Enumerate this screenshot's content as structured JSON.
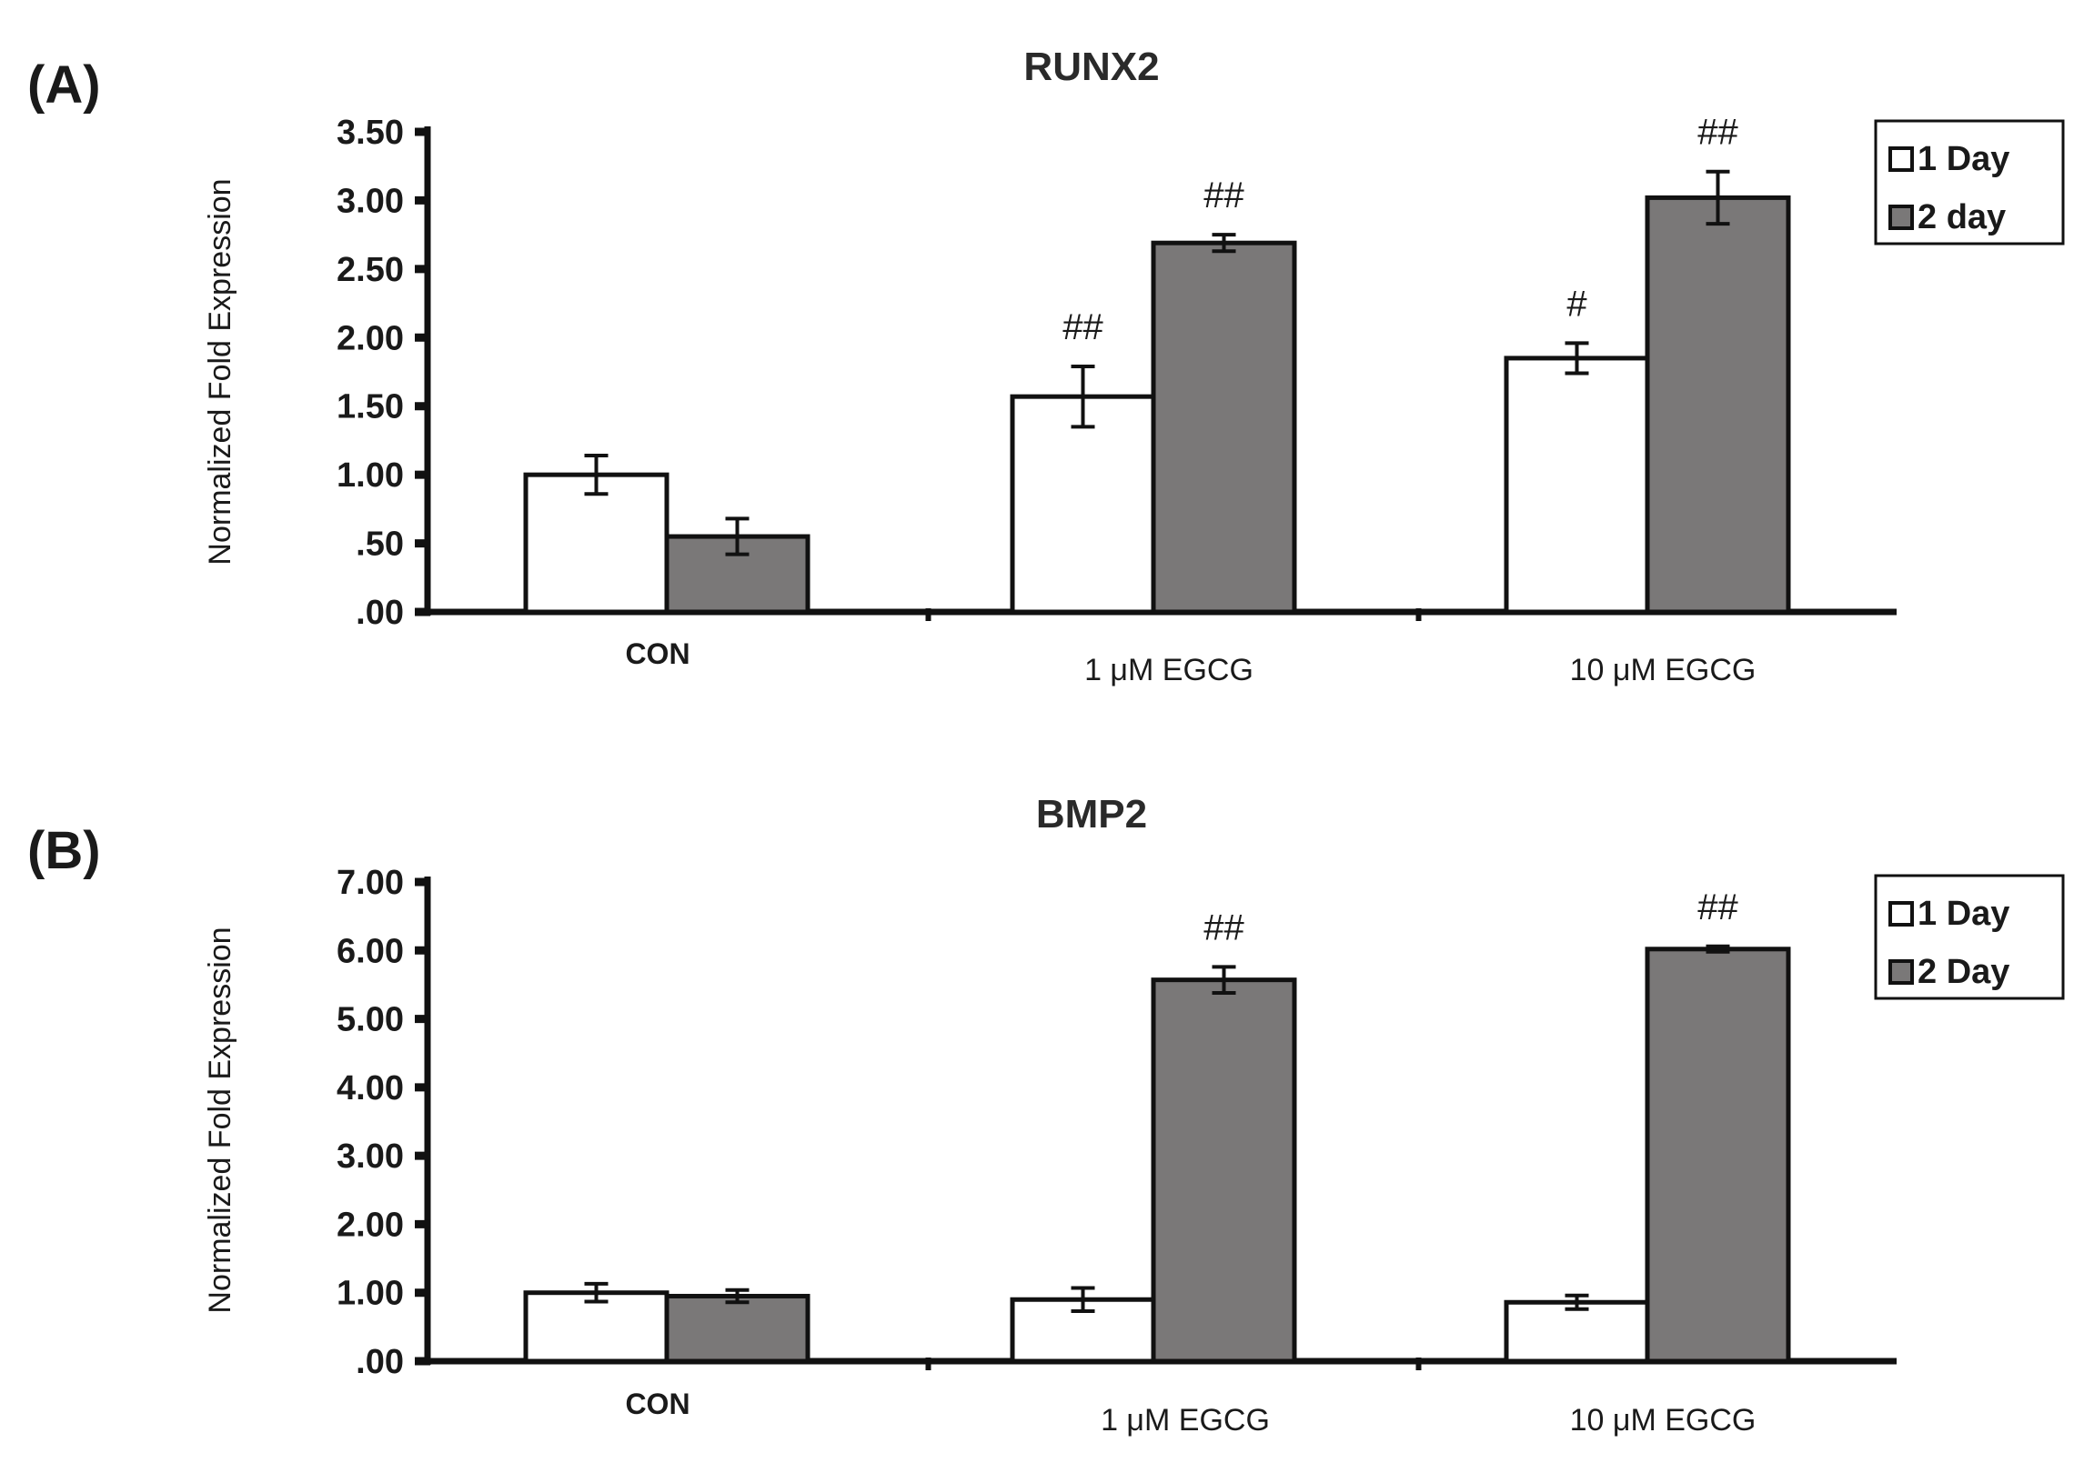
{
  "chart_data": [
    {
      "panel_label": "(A)",
      "type": "bar",
      "title": "RUNX2",
      "ylabel": "Normalized Fold Expression",
      "xlabel": "",
      "ylim": [
        0,
        3.5
      ],
      "yticks": [
        0,
        0.5,
        1,
        1.5,
        2,
        2.5,
        3,
        3.5
      ],
      "ytick_labels": [
        ".00",
        ".50",
        "1.00",
        "1.50",
        "2.00",
        "2.50",
        "3.00",
        "3.50"
      ],
      "categories": [
        "CON",
        "1 μM EGCG",
        "10 μM EGCG"
      ],
      "series": [
        {
          "name": "1 Day",
          "color": "#ffffff",
          "values": [
            1.0,
            1.57,
            1.85
          ],
          "errors": [
            0.14,
            0.22,
            0.11
          ],
          "annotations": [
            "",
            "##",
            "#"
          ]
        },
        {
          "name": "2 day",
          "color": "#7a7878",
          "values": [
            0.55,
            2.69,
            3.02
          ],
          "errors": [
            0.13,
            0.06,
            0.19
          ],
          "annotations": [
            "",
            "##",
            "##"
          ]
        }
      ],
      "legend": {
        "position": "top-right",
        "entries": [
          "1 Day",
          "2 day"
        ]
      }
    },
    {
      "panel_label": "(B)",
      "type": "bar",
      "title": "BMP2",
      "ylabel": "Normalized Fold Expression",
      "xlabel": "",
      "ylim": [
        0,
        7
      ],
      "yticks": [
        0,
        1,
        2,
        3,
        4,
        5,
        6,
        7
      ],
      "ytick_labels": [
        ".00",
        "1.00",
        "2.00",
        "3.00",
        "4.00",
        "5.00",
        "6.00",
        "7.00"
      ],
      "categories": [
        "CON",
        "1 μM EGCG",
        "10 μM EGCG"
      ],
      "series": [
        {
          "name": "1 Day",
          "color": "#ffffff",
          "values": [
            1.0,
            0.9,
            0.86
          ],
          "errors": [
            0.13,
            0.17,
            0.1
          ],
          "annotations": [
            "",
            "",
            ""
          ]
        },
        {
          "name": "2 Day",
          "color": "#7a7878",
          "values": [
            0.95,
            5.57,
            6.02
          ],
          "errors": [
            0.09,
            0.19,
            0.04
          ],
          "annotations": [
            "",
            "##",
            "##"
          ]
        }
      ],
      "legend": {
        "position": "top-right",
        "entries": [
          "1 Day",
          "2 Day"
        ]
      }
    }
  ]
}
